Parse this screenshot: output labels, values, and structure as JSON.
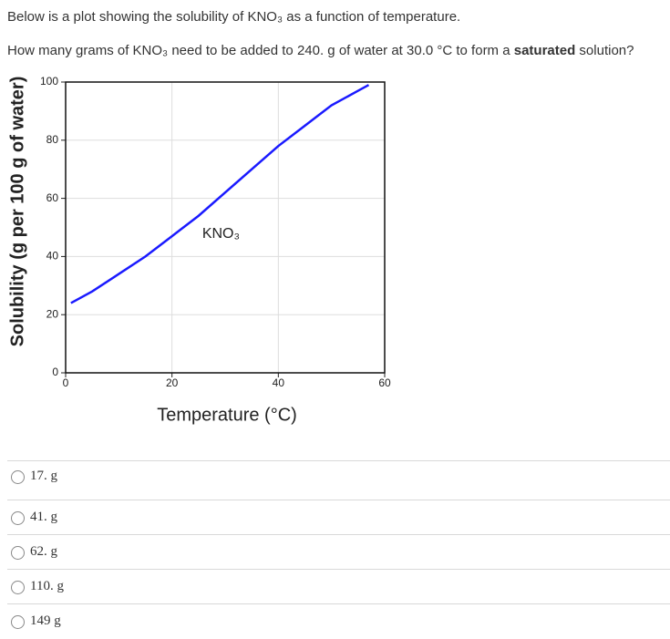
{
  "question": {
    "intro": "Below is a plot showing the solubility of KNO₃ as a function of temperature.",
    "prompt_start": "How many grams of KNO₃ need to be added to 240. g of water at 30.0 °C to form a ",
    "prompt_bold": "saturated",
    "prompt_end": " solution?"
  },
  "chart_data": {
    "type": "line",
    "x_label": "Temperature (°C)",
    "y_label": "Solubility (g per 100 g of water)",
    "xlim": [
      0,
      60
    ],
    "xticks": [
      0,
      20,
      40,
      60
    ],
    "ylim": [
      0,
      100
    ],
    "yticks": [
      0,
      20,
      40,
      60,
      80,
      100
    ],
    "grid": true,
    "series": [
      {
        "name": "KNO₃",
        "color": "#1a1aff",
        "x": [
          1,
          5,
          10,
          15,
          20,
          25,
          30,
          35,
          40,
          45,
          50,
          55,
          57
        ],
        "values": [
          24,
          28,
          34,
          40,
          47,
          54,
          62,
          70,
          78,
          85,
          92,
          97,
          99
        ]
      }
    ]
  },
  "options": [
    "17. g",
    "41. g",
    "62. g",
    "110. g",
    "149 g"
  ]
}
